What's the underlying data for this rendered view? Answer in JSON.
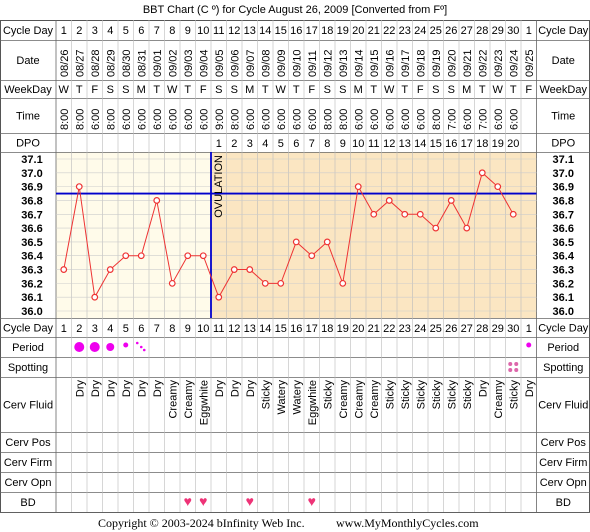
{
  "title": "BBT Chart (C º) for Cycle August 26, 2009  [Converted from Fº]",
  "copyright": "Copyright © 2003-2024 bInfinity Web Inc.",
  "site": "www.MyMonthlyCycles.com",
  "row_labels": {
    "cycle_day": "Cycle Day",
    "date": "Date",
    "weekday": "WeekDay",
    "time": "Time",
    "dpo": "DPO",
    "period": "Period",
    "spotting": "Spotting",
    "cerv_fluid": "Cerv Fluid",
    "cerv_pos": "Cerv Pos",
    "cerv_firm": "Cerv Firm",
    "cerv_opn": "Cerv Opn",
    "bd": "BD"
  },
  "ovulation_label": "OVULATION",
  "colors": {
    "pre_ovulation_bg": "#FFFBEA",
    "post_ovulation_bg": "#FBE6C2",
    "line": "#EE3333",
    "coverline": "#0000CC",
    "period": "#EE00EE",
    "heart": "#EE3377",
    "spotting": "#DD66AA"
  },
  "columns": [
    {
      "day": "1",
      "date": "08/26",
      "weekday": "W",
      "time": "8:00",
      "dpo": "",
      "period": "",
      "spotting": false,
      "fluid": "",
      "bd": false
    },
    {
      "day": "2",
      "date": "08/27",
      "weekday": "T",
      "time": "8:00",
      "dpo": "",
      "period": "heavy",
      "spotting": false,
      "fluid": "Dry",
      "bd": false
    },
    {
      "day": "3",
      "date": "08/28",
      "weekday": "F",
      "time": "6:00",
      "dpo": "",
      "period": "heavy",
      "spotting": false,
      "fluid": "Dry",
      "bd": false
    },
    {
      "day": "4",
      "date": "08/29",
      "weekday": "S",
      "time": "8:00",
      "dpo": "",
      "period": "medium",
      "spotting": false,
      "fluid": "Dry",
      "bd": false
    },
    {
      "day": "5",
      "date": "08/30",
      "weekday": "S",
      "time": "6:00",
      "dpo": "",
      "period": "light",
      "spotting": false,
      "fluid": "Dry",
      "bd": false
    },
    {
      "day": "6",
      "date": "08/31",
      "weekday": "M",
      "time": "6:00",
      "dpo": "",
      "period": "spotty",
      "spotting": false,
      "fluid": "Dry",
      "bd": false
    },
    {
      "day": "7",
      "date": "09/01",
      "weekday": "T",
      "time": "6:00",
      "dpo": "",
      "period": "",
      "spotting": false,
      "fluid": "Dry",
      "bd": false
    },
    {
      "day": "8",
      "date": "09/02",
      "weekday": "W",
      "time": "6:00",
      "dpo": "",
      "period": "",
      "spotting": false,
      "fluid": "Creamy",
      "bd": false
    },
    {
      "day": "9",
      "date": "09/03",
      "weekday": "T",
      "time": "6:00",
      "dpo": "",
      "period": "",
      "spotting": false,
      "fluid": "Creamy",
      "bd": true
    },
    {
      "day": "10",
      "date": "09/04",
      "weekday": "F",
      "time": "6:00",
      "dpo": "",
      "period": "",
      "spotting": false,
      "fluid": "Eggwhite",
      "bd": true
    },
    {
      "day": "11",
      "date": "09/05",
      "weekday": "S",
      "time": "9:00",
      "dpo": "1",
      "period": "",
      "spotting": false,
      "fluid": "Dry",
      "bd": false
    },
    {
      "day": "12",
      "date": "09/06",
      "weekday": "S",
      "time": "8:00",
      "dpo": "2",
      "period": "",
      "spotting": false,
      "fluid": "Dry",
      "bd": false
    },
    {
      "day": "13",
      "date": "09/07",
      "weekday": "M",
      "time": "6:00",
      "dpo": "3",
      "period": "",
      "spotting": false,
      "fluid": "Dry",
      "bd": true
    },
    {
      "day": "14",
      "date": "09/08",
      "weekday": "T",
      "time": "6:00",
      "dpo": "4",
      "period": "",
      "spotting": false,
      "fluid": "Sticky",
      "bd": false
    },
    {
      "day": "15",
      "date": "09/09",
      "weekday": "W",
      "time": "6:00",
      "dpo": "5",
      "period": "",
      "spotting": false,
      "fluid": "Watery",
      "bd": false
    },
    {
      "day": "16",
      "date": "09/10",
      "weekday": "T",
      "time": "6:00",
      "dpo": "6",
      "period": "",
      "spotting": false,
      "fluid": "Watery",
      "bd": false
    },
    {
      "day": "17",
      "date": "09/11",
      "weekday": "F",
      "time": "6:00",
      "dpo": "7",
      "period": "",
      "spotting": false,
      "fluid": "Eggwhite",
      "bd": true
    },
    {
      "day": "18",
      "date": "09/12",
      "weekday": "S",
      "time": "8:00",
      "dpo": "8",
      "period": "",
      "spotting": false,
      "fluid": "Sticky",
      "bd": false
    },
    {
      "day": "19",
      "date": "09/13",
      "weekday": "S",
      "time": "8:00",
      "dpo": "9",
      "period": "",
      "spotting": false,
      "fluid": "Creamy",
      "bd": false
    },
    {
      "day": "20",
      "date": "09/14",
      "weekday": "M",
      "time": "6:00",
      "dpo": "10",
      "period": "",
      "spotting": false,
      "fluid": "Creamy",
      "bd": false
    },
    {
      "day": "21",
      "date": "09/15",
      "weekday": "T",
      "time": "6:00",
      "dpo": "11",
      "period": "",
      "spotting": false,
      "fluid": "Creamy",
      "bd": false
    },
    {
      "day": "22",
      "date": "09/16",
      "weekday": "W",
      "time": "6:00",
      "dpo": "12",
      "period": "",
      "spotting": false,
      "fluid": "Sticky",
      "bd": false
    },
    {
      "day": "23",
      "date": "09/17",
      "weekday": "T",
      "time": "6:00",
      "dpo": "13",
      "period": "",
      "spotting": false,
      "fluid": "Sticky",
      "bd": false
    },
    {
      "day": "24",
      "date": "09/18",
      "weekday": "F",
      "time": "6:00",
      "dpo": "14",
      "period": "",
      "spotting": false,
      "fluid": "Sticky",
      "bd": false
    },
    {
      "day": "25",
      "date": "09/19",
      "weekday": "S",
      "time": "8:00",
      "dpo": "15",
      "period": "",
      "spotting": false,
      "fluid": "Sticky",
      "bd": false
    },
    {
      "day": "26",
      "date": "09/20",
      "weekday": "S",
      "time": "7:00",
      "dpo": "16",
      "period": "",
      "spotting": false,
      "fluid": "Sticky",
      "bd": false
    },
    {
      "day": "27",
      "date": "09/21",
      "weekday": "M",
      "time": "6:00",
      "dpo": "17",
      "period": "",
      "spotting": false,
      "fluid": "Sticky",
      "bd": false
    },
    {
      "day": "28",
      "date": "09/22",
      "weekday": "T",
      "time": "7:00",
      "dpo": "18",
      "period": "",
      "spotting": false,
      "fluid": "Dry",
      "bd": false
    },
    {
      "day": "29",
      "date": "09/23",
      "weekday": "W",
      "time": "6:00",
      "dpo": "19",
      "period": "",
      "spotting": false,
      "fluid": "Creamy",
      "bd": false
    },
    {
      "day": "30",
      "date": "09/24",
      "weekday": "T",
      "time": "6:00",
      "dpo": "20",
      "period": "",
      "spotting": true,
      "fluid": "Sticky",
      "bd": false
    },
    {
      "day": "1",
      "date": "09/25",
      "weekday": "F",
      "time": "",
      "dpo": "",
      "period": "light",
      "spotting": false,
      "fluid": "Dry",
      "bd": false
    }
  ],
  "chart_data": {
    "type": "line",
    "title": "BBT Chart (C º) for Cycle August 26, 2009  [Converted from Fº]",
    "x": [
      1,
      2,
      3,
      4,
      5,
      6,
      7,
      8,
      9,
      10,
      11,
      12,
      13,
      14,
      15,
      16,
      17,
      18,
      19,
      20,
      21,
      22,
      23,
      24,
      25,
      26,
      27,
      28,
      29,
      30
    ],
    "y": [
      36.3,
      36.9,
      36.1,
      36.3,
      36.4,
      36.4,
      36.8,
      36.2,
      36.4,
      36.4,
      36.1,
      36.3,
      36.3,
      36.2,
      36.2,
      36.5,
      36.4,
      36.5,
      36.2,
      36.9,
      36.7,
      36.8,
      36.7,
      36.7,
      36.6,
      36.8,
      36.6,
      37.0,
      36.9,
      36.7
    ],
    "ylim": [
      36.0,
      37.1
    ],
    "y_ticks": [
      "37.1",
      "37.0",
      "36.9",
      "36.8",
      "36.7",
      "36.6",
      "36.5",
      "36.4",
      "36.3",
      "36.2",
      "36.1",
      "36.0"
    ],
    "coverline": 36.85,
    "ovulation_day": 10,
    "grid": true
  }
}
